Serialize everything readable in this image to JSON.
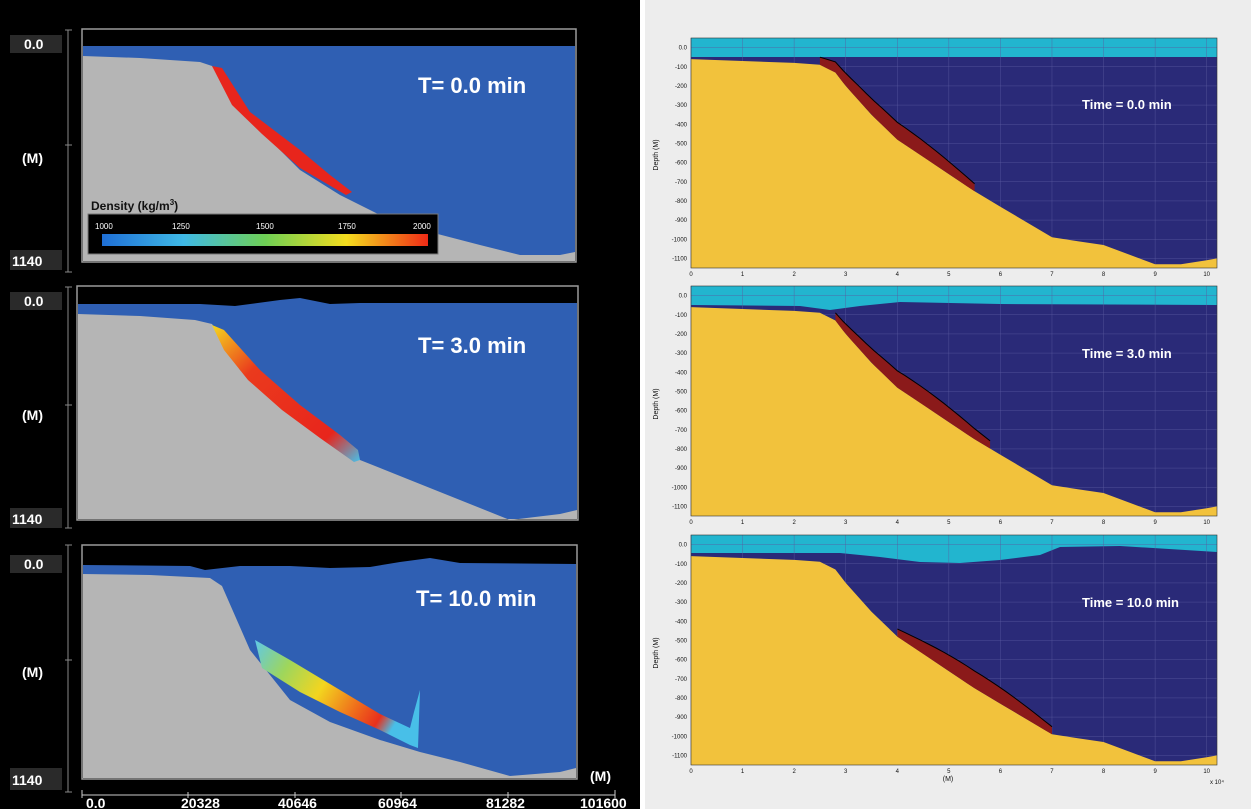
{
  "left": {
    "depth_top": "0.0",
    "depth_bottom": "1140",
    "axis_unit": "(M)",
    "x_unit": "(M)",
    "x_ticks": [
      "0.0",
      "20328",
      "40646",
      "60964",
      "81282",
      "101600"
    ],
    "colorbar": {
      "title": "Density (kg/m",
      "sup": "3",
      "title_end": ")",
      "ticks": [
        "1000",
        "1250",
        "1500",
        "1750",
        "2000"
      ]
    },
    "panels": [
      {
        "label": "T= 0.0 min"
      },
      {
        "label": "T= 3.0 min"
      },
      {
        "label": "T= 10.0 min"
      }
    ]
  },
  "right": {
    "ylabel": "Depth (M)",
    "xlabel": "(M)",
    "xscale": "x 10⁴",
    "yticks": [
      "0.0",
      "-100",
      "-200",
      "-300",
      "-400",
      "-500",
      "-600",
      "-700",
      "-800",
      "-900",
      "-1000",
      "-1100"
    ],
    "xticks": [
      "0",
      "1",
      "2",
      "3",
      "4",
      "5",
      "6",
      "7",
      "8",
      "9",
      "10"
    ],
    "panels": [
      {
        "label": "Time = 0.0 min"
      },
      {
        "label": "Time = 3.0 min"
      },
      {
        "label": "Time = 10.0 min"
      }
    ]
  },
  "colors": {
    "left_water": "#2f5fb3",
    "left_seabed": "#b5b5b5",
    "left_slide": "#e8251c",
    "right_water": "#2a2a78",
    "right_seabed": "#f2c23c",
    "right_slide": "#8b1a1a",
    "right_surface": "#22b5cf"
  },
  "chart_data": [
    {
      "type": "area",
      "title": "",
      "xlabel": "(M)",
      "ylabel": "(M)",
      "xlim": [
        0,
        101600
      ],
      "ylim": [
        1140,
        0
      ],
      "x_ticks": [
        0,
        20328,
        40646,
        60964,
        81282,
        101600
      ],
      "colorbar": {
        "label": "Density (kg/m3)",
        "range": [
          1000,
          2000
        ],
        "ticks": [
          1000,
          1250,
          1500,
          1750,
          2000
        ]
      },
      "series": [
        {
          "name": "T= 0.0 min"
        },
        {
          "name": "T= 3.0 min"
        },
        {
          "name": "T= 10.0 min"
        }
      ]
    },
    {
      "type": "area",
      "title": "",
      "xlabel": "(M)",
      "ylabel": "Depth (M)",
      "xlim": [
        0,
        10.2
      ],
      "x_scale_factor": 10000,
      "ylim": [
        -1150,
        50
      ],
      "x_ticks": [
        0,
        1,
        2,
        3,
        4,
        5,
        6,
        7,
        8,
        9,
        10
      ],
      "y_ticks": [
        0,
        -100,
        -200,
        -300,
        -400,
        -500,
        -600,
        -700,
        -800,
        -900,
        -1000,
        -1100
      ],
      "grid": true,
      "seabed_depth": {
        "x": [
          0,
          1,
          2,
          2.5,
          2.8,
          3,
          3.5,
          4,
          4.5,
          5,
          5.5,
          6,
          6.5,
          7,
          7.5,
          8,
          8.5,
          9,
          9.5,
          10,
          10.2
        ],
        "y": [
          -60,
          -70,
          -80,
          -90,
          -130,
          -200,
          -350,
          -480,
          -570,
          -660,
          -750,
          -830,
          -910,
          -990,
          -1010,
          -1030,
          -1080,
          -1130,
          -1130,
          -1110,
          -1100
        ]
      },
      "series": [
        {
          "name": "Time = 0.0 min",
          "slide_x_range": [
            2.5,
            5.5
          ]
        },
        {
          "name": "Time = 3.0 min",
          "slide_x_range": [
            2.8,
            5.8
          ]
        },
        {
          "name": "Time = 10.0 min",
          "slide_x_range": [
            4.0,
            7.0
          ]
        }
      ]
    }
  ]
}
